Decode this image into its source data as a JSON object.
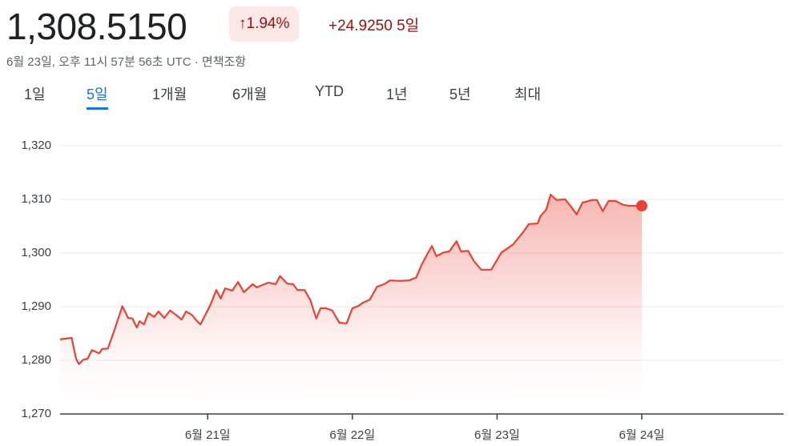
{
  "header": {
    "price": "1,308.5150",
    "change_pct": "1.94%",
    "change_abs": "+24.9250",
    "period": "5일",
    "timestamp": "6월 23일, 오후 11시 57분 56초 UTC · 면책조항"
  },
  "tabs": [
    "1일",
    "5일",
    "1개월",
    "6개월",
    "YTD",
    "1년",
    "5년",
    "최대"
  ],
  "active_tab": 1,
  "chart_data": {
    "type": "line",
    "color": "#e94235",
    "grid": true,
    "xlim": [
      19.98,
      24.98
    ],
    "ylim": [
      1270,
      1320
    ],
    "xticks": [
      {
        "value": 21,
        "label": "6월 21일"
      },
      {
        "value": 22,
        "label": "6월 22일"
      },
      {
        "value": 23,
        "label": "6월 23일"
      },
      {
        "value": 24,
        "label": "6월 24일"
      }
    ],
    "yticks": [
      {
        "value": 1270,
        "label": "1,270"
      },
      {
        "value": 1280,
        "label": "1,280"
      },
      {
        "value": 1290,
        "label": "1,290"
      },
      {
        "value": 1300,
        "label": "1,300"
      },
      {
        "value": 1310,
        "label": "1,310"
      },
      {
        "value": 1320,
        "label": "1,320"
      }
    ],
    "x": [
      19.98,
      20.06,
      20.09,
      20.11,
      20.14,
      20.17,
      20.2,
      20.25,
      20.27,
      20.31,
      20.35,
      20.41,
      20.45,
      20.48,
      20.51,
      20.53,
      20.56,
      20.59,
      20.63,
      20.66,
      20.7,
      20.74,
      20.78,
      20.82,
      20.85,
      20.89,
      20.93,
      20.95,
      21.02,
      21.06,
      21.09,
      21.12,
      21.17,
      21.21,
      21.25,
      21.31,
      21.34,
      21.42,
      21.47,
      21.5,
      21.55,
      21.59,
      21.62,
      21.67,
      21.71,
      21.75,
      21.78,
      21.82,
      21.86,
      21.91,
      21.96,
      22.0,
      22.04,
      22.07,
      22.12,
      22.17,
      22.22,
      22.26,
      22.33,
      22.39,
      22.44,
      22.48,
      22.53,
      22.55,
      22.58,
      22.63,
      22.67,
      22.72,
      22.75,
      22.8,
      22.84,
      22.89,
      22.96,
      23.03,
      23.11,
      23.18,
      23.22,
      23.28,
      23.3,
      23.34,
      23.37,
      23.41,
      23.47,
      23.51,
      23.55,
      23.59,
      23.66,
      23.69,
      23.73,
      23.77,
      23.82,
      23.87,
      23.91,
      24.0
    ],
    "values": [
      1283.9,
      1284.2,
      1280.3,
      1279.3,
      1280.1,
      1280.3,
      1281.9,
      1281.3,
      1282.1,
      1282.2,
      1285.2,
      1290.1,
      1287.9,
      1287.8,
      1286.1,
      1287.3,
      1286.7,
      1288.8,
      1288.1,
      1289.1,
      1287.9,
      1289.3,
      1288.5,
      1287.6,
      1289.1,
      1288.5,
      1287.2,
      1286.7,
      1290.4,
      1293.1,
      1291.5,
      1293.4,
      1293.0,
      1294.6,
      1292.7,
      1294.2,
      1293.6,
      1294.5,
      1294.2,
      1295.7,
      1294.3,
      1294.2,
      1293.1,
      1293.1,
      1291.2,
      1287.8,
      1289.7,
      1289.7,
      1289.3,
      1287.0,
      1286.9,
      1289.7,
      1290.1,
      1290.7,
      1291.3,
      1293.7,
      1294.2,
      1294.9,
      1294.8,
      1294.9,
      1295.4,
      1297.9,
      1300.4,
      1301.3,
      1299.4,
      1300.1,
      1300.3,
      1302.2,
      1300.3,
      1300.4,
      1298.5,
      1296.9,
      1296.9,
      1300.1,
      1301.6,
      1303.9,
      1305.4,
      1305.5,
      1306.9,
      1308.1,
      1310.9,
      1309.9,
      1310.0,
      1308.7,
      1307.2,
      1309.4,
      1309.9,
      1309.9,
      1307.8,
      1309.7,
      1309.7,
      1309.0,
      1308.8,
      1308.8
    ]
  }
}
